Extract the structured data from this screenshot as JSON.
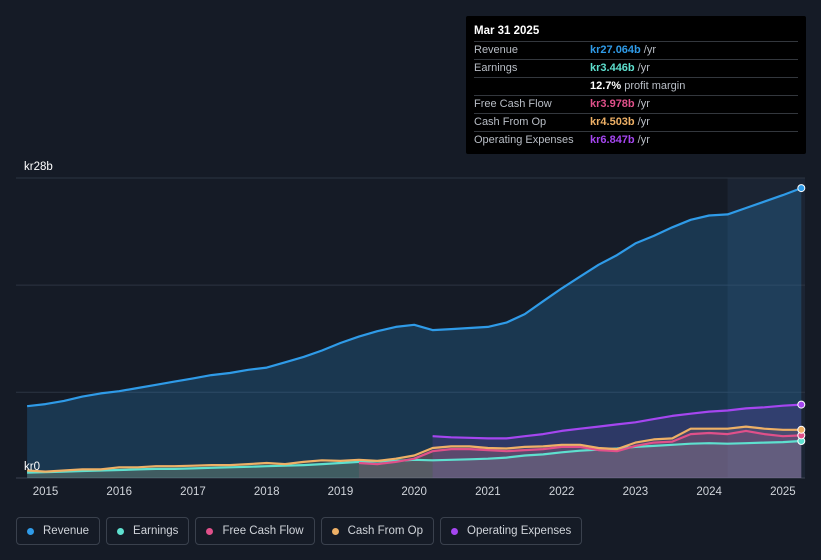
{
  "tooltip": {
    "date": "Mar 31 2025",
    "rows": [
      {
        "label": "Revenue",
        "value": "kr27.064b",
        "unit": "/yr",
        "color": "#2f9be8"
      },
      {
        "label": "Earnings",
        "value": "kr3.446b",
        "unit": "/yr",
        "color": "#5ee0cf"
      },
      {
        "label": "",
        "value": "12.7%",
        "unit": "profit margin",
        "color": "#ffffff"
      },
      {
        "label": "Free Cash Flow",
        "value": "kr3.978b",
        "unit": "/yr",
        "color": "#e0508a"
      },
      {
        "label": "Cash From Op",
        "value": "kr4.503b",
        "unit": "/yr",
        "color": "#eeb066"
      },
      {
        "label": "Operating Expenses",
        "value": "kr6.847b",
        "unit": "/yr",
        "color": "#a546f0"
      }
    ]
  },
  "legend": [
    {
      "label": "Revenue",
      "color": "#2f9be8"
    },
    {
      "label": "Earnings",
      "color": "#5ee0cf"
    },
    {
      "label": "Free Cash Flow",
      "color": "#e0508a"
    },
    {
      "label": "Cash From Op",
      "color": "#eeb066"
    },
    {
      "label": "Operating Expenses",
      "color": "#a546f0"
    }
  ],
  "chart_data": {
    "type": "area",
    "title": "",
    "xlabel": "",
    "ylabel": "",
    "ylim": [
      0,
      28
    ],
    "xlim": [
      2014.6,
      2025.3
    ],
    "y_tick_labels": [
      {
        "value": 28,
        "label": "kr28b"
      },
      {
        "value": 0,
        "label": "kr0"
      }
    ],
    "x_ticks": [
      2015,
      2016,
      2017,
      2018,
      2019,
      2020,
      2021,
      2022,
      2023,
      2024,
      2025
    ],
    "forecast_shade_start": 2024.25,
    "grid": true,
    "series": [
      {
        "name": "Revenue",
        "color": "#2f9be8",
        "area": true,
        "x": [
          2014.75,
          2015.0,
          2015.25,
          2015.5,
          2015.75,
          2016.0,
          2016.25,
          2016.5,
          2016.75,
          2017.0,
          2017.25,
          2017.5,
          2017.75,
          2018.0,
          2018.25,
          2018.5,
          2018.75,
          2019.0,
          2019.25,
          2019.5,
          2019.75,
          2020.0,
          2020.25,
          2020.5,
          2020.75,
          2021.0,
          2021.25,
          2021.5,
          2021.75,
          2022.0,
          2022.25,
          2022.5,
          2022.75,
          2023.0,
          2023.25,
          2023.5,
          2023.75,
          2024.0,
          2024.25,
          2024.5,
          2024.75,
          2025.0,
          2025.25
        ],
        "y": [
          6.7,
          6.9,
          7.2,
          7.6,
          7.9,
          8.1,
          8.4,
          8.7,
          9.0,
          9.3,
          9.6,
          9.8,
          10.1,
          10.3,
          10.8,
          11.3,
          11.9,
          12.6,
          13.2,
          13.7,
          14.1,
          14.3,
          13.8,
          13.9,
          14.0,
          14.1,
          14.5,
          15.3,
          16.5,
          17.7,
          18.8,
          19.9,
          20.8,
          21.9,
          22.6,
          23.4,
          24.1,
          24.5,
          24.6,
          25.2,
          25.8,
          26.4,
          27.06
        ]
      },
      {
        "name": "Earnings",
        "color": "#5ee0cf",
        "area": true,
        "x": [
          2014.75,
          2015.0,
          2015.25,
          2015.5,
          2015.75,
          2016.0,
          2016.25,
          2016.5,
          2016.75,
          2017.0,
          2017.25,
          2017.5,
          2017.75,
          2018.0,
          2018.25,
          2018.5,
          2018.75,
          2019.0,
          2019.25,
          2019.5,
          2019.75,
          2020.0,
          2020.25,
          2020.5,
          2020.75,
          2021.0,
          2021.25,
          2021.5,
          2021.75,
          2022.0,
          2022.25,
          2022.5,
          2022.75,
          2023.0,
          2023.25,
          2023.5,
          2023.75,
          2024.0,
          2024.25,
          2024.5,
          2024.75,
          2025.0,
          2025.25
        ],
        "y": [
          0.5,
          0.55,
          0.6,
          0.65,
          0.7,
          0.75,
          0.8,
          0.85,
          0.85,
          0.9,
          0.95,
          1.0,
          1.05,
          1.1,
          1.15,
          1.2,
          1.3,
          1.4,
          1.5,
          1.55,
          1.6,
          1.7,
          1.65,
          1.7,
          1.75,
          1.8,
          1.9,
          2.1,
          2.2,
          2.4,
          2.55,
          2.65,
          2.75,
          2.9,
          3.0,
          3.1,
          3.2,
          3.25,
          3.2,
          3.25,
          3.3,
          3.35,
          3.45
        ]
      },
      {
        "name": "Free Cash Flow",
        "color": "#e0508a",
        "area": true,
        "x": [
          2019.25,
          2019.5,
          2019.75,
          2020.0,
          2020.25,
          2020.5,
          2020.75,
          2021.0,
          2021.25,
          2021.5,
          2021.75,
          2022.0,
          2022.25,
          2022.5,
          2022.75,
          2023.0,
          2023.25,
          2023.5,
          2023.75,
          2024.0,
          2024.25,
          2024.5,
          2024.75,
          2025.0,
          2025.25
        ],
        "y": [
          1.4,
          1.3,
          1.5,
          1.8,
          2.5,
          2.7,
          2.7,
          2.6,
          2.5,
          2.6,
          2.7,
          2.9,
          2.9,
          2.6,
          2.5,
          3.0,
          3.3,
          3.4,
          4.1,
          4.2,
          4.1,
          4.4,
          4.1,
          3.9,
          3.98
        ]
      },
      {
        "name": "Cash From Op",
        "color": "#eeb066",
        "area": true,
        "x": [
          2014.75,
          2015.0,
          2015.25,
          2015.5,
          2015.75,
          2016.0,
          2016.25,
          2016.5,
          2016.75,
          2017.0,
          2017.25,
          2017.5,
          2017.75,
          2018.0,
          2018.25,
          2018.5,
          2018.75,
          2019.0,
          2019.25,
          2019.5,
          2019.75,
          2020.0,
          2020.25,
          2020.5,
          2020.75,
          2021.0,
          2021.25,
          2021.5,
          2021.75,
          2022.0,
          2022.25,
          2022.5,
          2022.75,
          2023.0,
          2023.25,
          2023.5,
          2023.75,
          2024.0,
          2024.25,
          2024.5,
          2024.75,
          2025.0,
          2025.25
        ],
        "y": [
          0.7,
          0.6,
          0.7,
          0.8,
          0.8,
          1.0,
          1.0,
          1.1,
          1.1,
          1.15,
          1.2,
          1.2,
          1.3,
          1.4,
          1.3,
          1.5,
          1.65,
          1.6,
          1.7,
          1.6,
          1.8,
          2.1,
          2.8,
          2.95,
          2.95,
          2.8,
          2.75,
          2.9,
          2.95,
          3.1,
          3.1,
          2.8,
          2.7,
          3.3,
          3.6,
          3.7,
          4.6,
          4.6,
          4.6,
          4.8,
          4.6,
          4.5,
          4.5
        ]
      },
      {
        "name": "Operating Expenses",
        "color": "#a546f0",
        "area": true,
        "x": [
          2020.25,
          2020.5,
          2020.75,
          2021.0,
          2021.25,
          2021.5,
          2021.75,
          2022.0,
          2022.25,
          2022.5,
          2022.75,
          2023.0,
          2023.25,
          2023.5,
          2023.75,
          2024.0,
          2024.25,
          2024.5,
          2024.75,
          2025.0,
          2025.25
        ],
        "y": [
          3.9,
          3.8,
          3.75,
          3.7,
          3.7,
          3.9,
          4.1,
          4.4,
          4.6,
          4.8,
          5.0,
          5.2,
          5.5,
          5.8,
          6.0,
          6.2,
          6.3,
          6.5,
          6.6,
          6.75,
          6.85
        ]
      }
    ]
  }
}
